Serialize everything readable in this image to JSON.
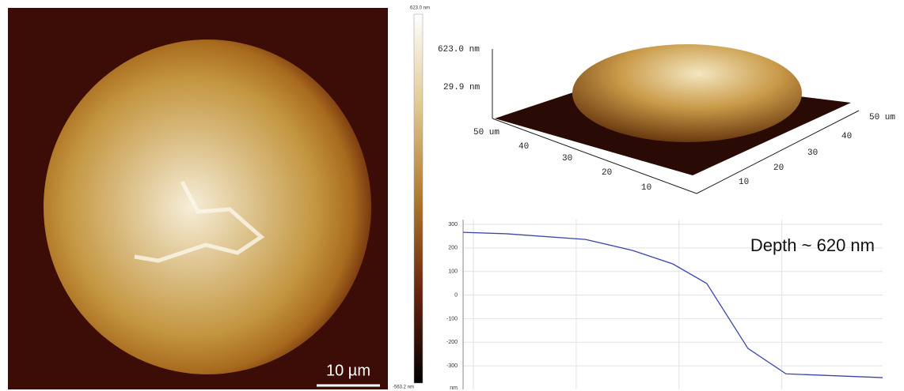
{
  "afm_image": {
    "scale_bar": "10 µm",
    "colorbar_max": "623.0 nm",
    "colorbar_min": "-563.2 nm"
  },
  "view_3d": {
    "z_labels": [
      "623.0 nm",
      "29.9 nm"
    ],
    "left_axis": [
      "50 um",
      "40",
      "30",
      "20",
      "10"
    ],
    "right_axis": [
      "10",
      "20",
      "30",
      "40",
      "50 um"
    ]
  },
  "chart_data": {
    "type": "line",
    "annotation": "Depth ~ 620 nm",
    "y_unit": "nm",
    "x": [
      -0.1,
      0.32,
      1.09,
      1.55,
      1.94,
      2.27,
      2.67,
      3.04,
      3.98
    ],
    "series": [
      {
        "color": "#3a45a8",
        "values": [
          266,
          260,
          236,
          189,
          132,
          49,
          -226,
          -334,
          -350
        ]
      }
    ],
    "xlim": [
      -0.1,
      3.98
    ],
    "xgrid": [
      0,
      1,
      2,
      3
    ],
    "ylim": [
      -400,
      320
    ],
    "yticks": [
      300,
      200,
      100,
      0,
      -100,
      -200,
      -300
    ],
    "grid": true
  }
}
